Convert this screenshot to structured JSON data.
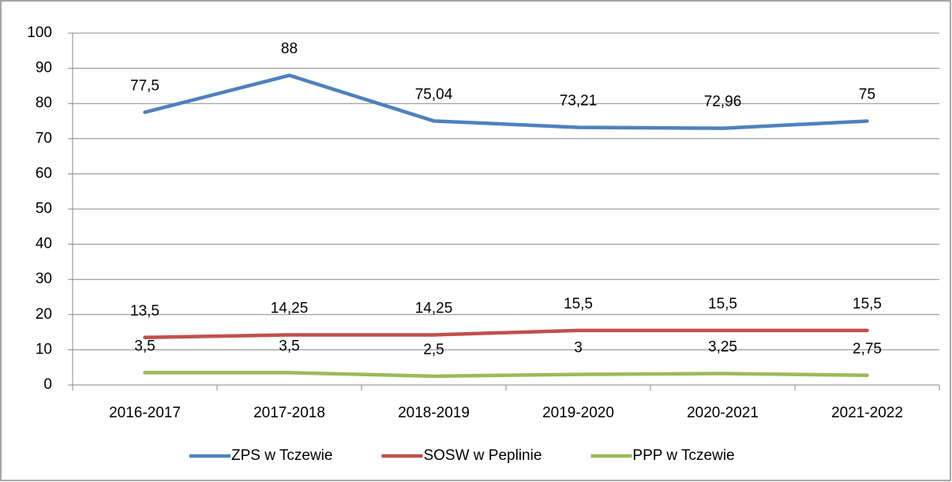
{
  "chart_data": {
    "type": "line",
    "categories": [
      "2016-2017",
      "2017-2018",
      "2018-2019",
      "2019-2020",
      "2020-2021",
      "2021-2022"
    ],
    "series": [
      {
        "name": "ZPS w Tczewie",
        "color": "#4f81bd",
        "values": [
          77.5,
          88,
          75.04,
          73.21,
          72.96,
          75
        ],
        "value_labels": [
          "77,5",
          "88",
          "75,04",
          "73,21",
          "72,96",
          "75"
        ]
      },
      {
        "name": "SOSW w Peplinie",
        "color": "#c0504d",
        "values": [
          13.5,
          14.25,
          14.25,
          15.5,
          15.5,
          15.5
        ],
        "value_labels": [
          "13,5",
          "14,25",
          "14,25",
          "15,5",
          "15,5",
          "15,5"
        ]
      },
      {
        "name": "PPP w Tczewie",
        "color": "#9bbb59",
        "values": [
          3.5,
          3.5,
          2.5,
          3,
          3.25,
          2.75
        ],
        "value_labels": [
          "3,5",
          "3,5",
          "2,5",
          "3",
          "3,25",
          "2,75"
        ]
      }
    ],
    "ylim": [
      0,
      100
    ],
    "yticks": [
      0,
      10,
      20,
      30,
      40,
      50,
      60,
      70,
      80,
      90,
      100
    ],
    "grid": true,
    "legend": "bottom"
  }
}
